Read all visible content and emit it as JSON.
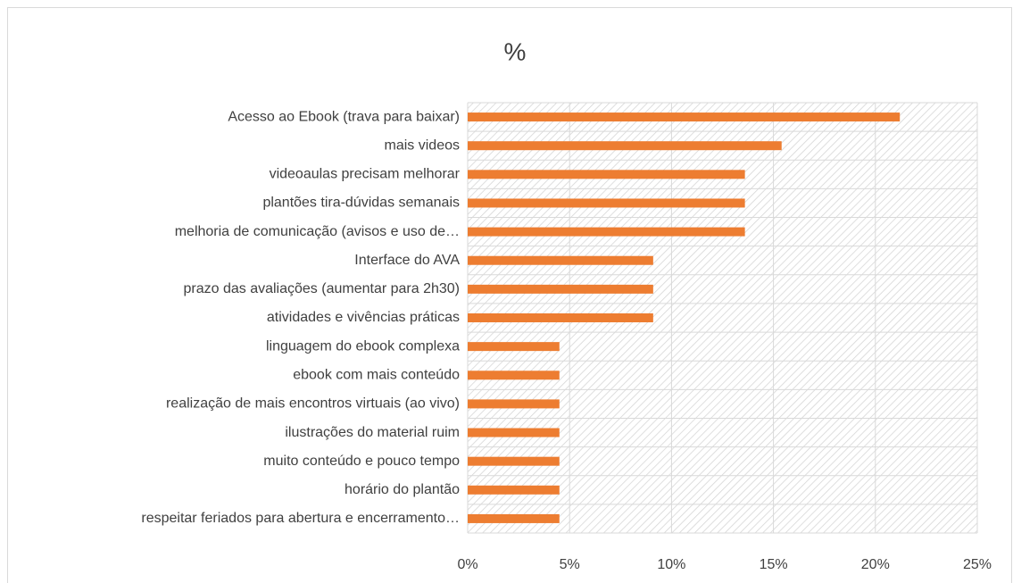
{
  "chart_data": {
    "type": "bar",
    "orientation": "horizontal",
    "title": "%",
    "categories": [
      "Acesso ao Ebook (trava para baixar)",
      "mais videos",
      "videoaulas  precisam melhorar",
      "plantões tira-dúvidas semanais",
      "melhoria de comunicação (avisos e uso de…",
      "Interface do AVA",
      "prazo das avaliações (aumentar para 2h30)",
      "atividades e vivências práticas ",
      "linguagem do ebook complexa",
      "ebook com mais conteúdo",
      "realização de mais encontros virtuais (ao vivo)",
      "ilustrações do material ruim",
      "muito conteúdo e pouco tempo",
      "horário do plantão ",
      "respeitar feriados para abertura e encerramento…"
    ],
    "values": [
      21.2,
      15.4,
      13.6,
      13.6,
      13.6,
      9.1,
      9.1,
      9.1,
      4.5,
      4.5,
      4.5,
      4.5,
      4.5,
      4.5,
      4.5
    ],
    "color": "#ed7d31",
    "xlim": [
      0,
      25
    ],
    "xticks": [
      {
        "value": 0,
        "label": "0%"
      },
      {
        "value": 5,
        "label": "5%"
      },
      {
        "value": 10,
        "label": "10%"
      },
      {
        "value": 15,
        "label": "15%"
      },
      {
        "value": 20,
        "label": "20%"
      },
      {
        "value": 25,
        "label": "25%"
      }
    ],
    "grid": true
  }
}
